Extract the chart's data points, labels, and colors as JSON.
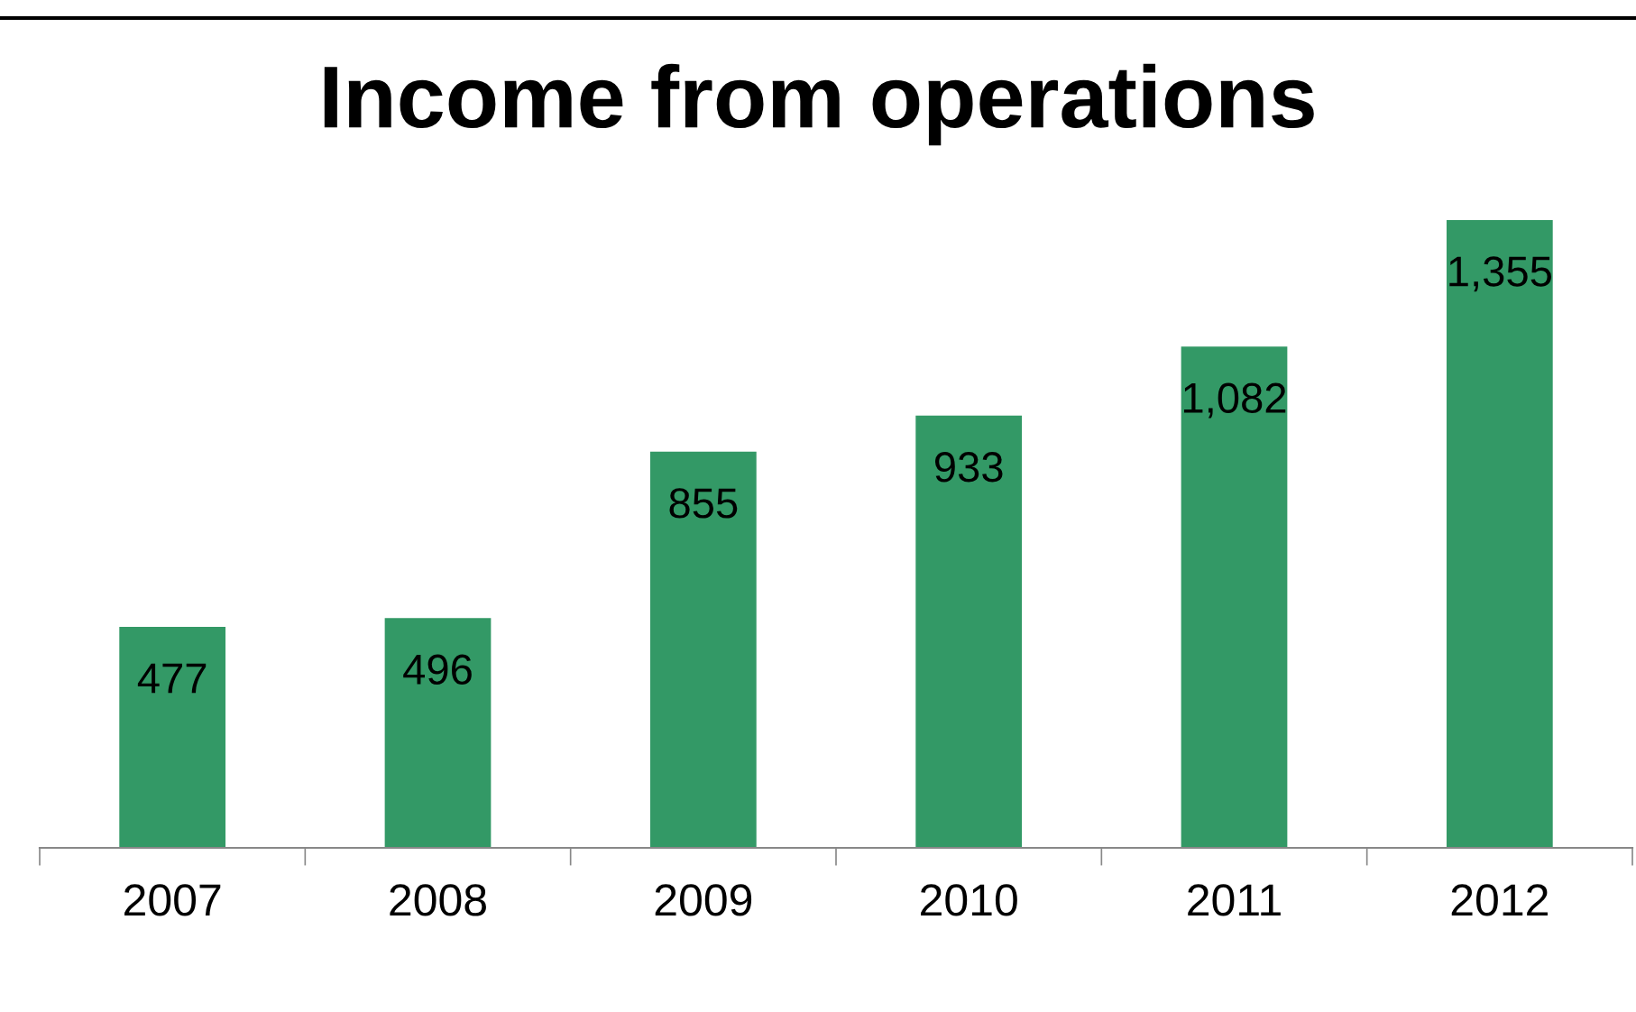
{
  "chart_data": {
    "type": "bar",
    "title": "Income from operations",
    "categories": [
      "2007",
      "2008",
      "2009",
      "2010",
      "2011",
      "2012"
    ],
    "values": [
      477,
      496,
      855,
      933,
      1082,
      1355
    ],
    "value_labels": [
      "477",
      "496",
      "855",
      "933",
      "1,082",
      "1,355"
    ],
    "color": "#339966",
    "grid": false
  }
}
